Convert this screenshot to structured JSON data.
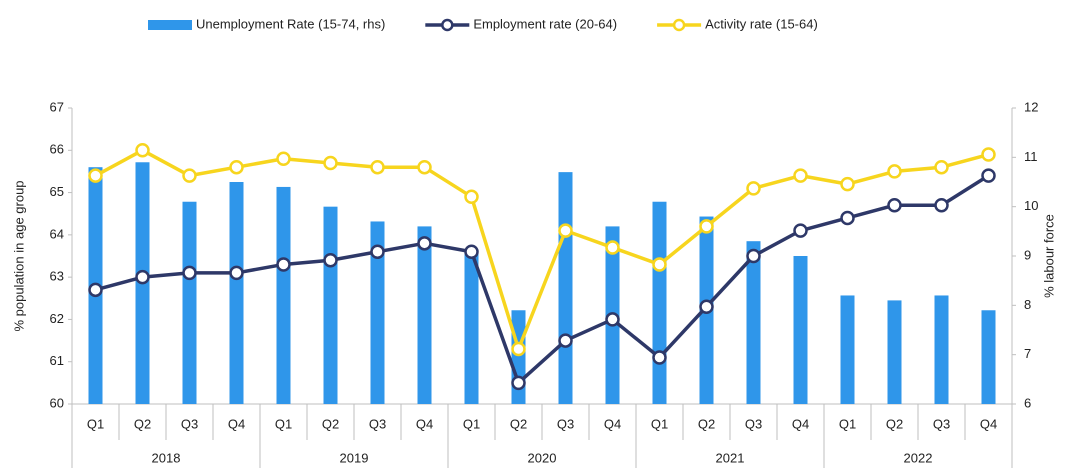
{
  "chart_data": {
    "type": "combo",
    "categories": [
      "Q1",
      "Q2",
      "Q3",
      "Q4",
      "Q1",
      "Q2",
      "Q3",
      "Q4",
      "Q1",
      "Q2",
      "Q3",
      "Q4",
      "Q1",
      "Q2",
      "Q3",
      "Q4",
      "Q1",
      "Q2",
      "Q3",
      "Q4"
    ],
    "years": [
      "2018",
      "2019",
      "2020",
      "2021",
      "2022"
    ],
    "y_label": "% population in age group",
    "y2_label": "% labour force",
    "ylim": [
      60,
      67
    ],
    "yticks": [
      60,
      61,
      62,
      63,
      64,
      65,
      66,
      67
    ],
    "y2lim": [
      6,
      12
    ],
    "y2ticks": [
      6,
      7,
      8,
      9,
      10,
      11,
      12
    ],
    "grid": false,
    "legend": "top",
    "series": [
      {
        "name": "Unemployment Rate (15-74, rhs)",
        "type": "bar",
        "axis": "y2",
        "color": "#2f96ea",
        "values": [
          10.8,
          10.9,
          10.1,
          10.5,
          10.4,
          10.0,
          9.7,
          9.6,
          9.1,
          7.9,
          10.7,
          9.6,
          10.1,
          9.8,
          9.3,
          9.0,
          8.2,
          8.1,
          8.2,
          7.9
        ]
      },
      {
        "name": "Employment rate (20-64)",
        "type": "line",
        "color": "#2e3868",
        "values": [
          62.7,
          63.0,
          63.1,
          63.1,
          63.3,
          63.4,
          63.6,
          63.8,
          63.6,
          60.5,
          61.5,
          62.0,
          61.1,
          62.3,
          63.5,
          64.1,
          64.4,
          64.7,
          64.7,
          65.4
        ]
      },
      {
        "name": "Activity rate (15-64)",
        "type": "line",
        "color": "#f7d51e",
        "values": [
          65.4,
          66.0,
          65.4,
          65.6,
          65.8,
          65.7,
          65.6,
          65.6,
          64.9,
          61.3,
          64.1,
          63.7,
          63.3,
          64.2,
          65.1,
          65.4,
          65.2,
          65.5,
          65.6,
          65.9
        ]
      }
    ]
  }
}
